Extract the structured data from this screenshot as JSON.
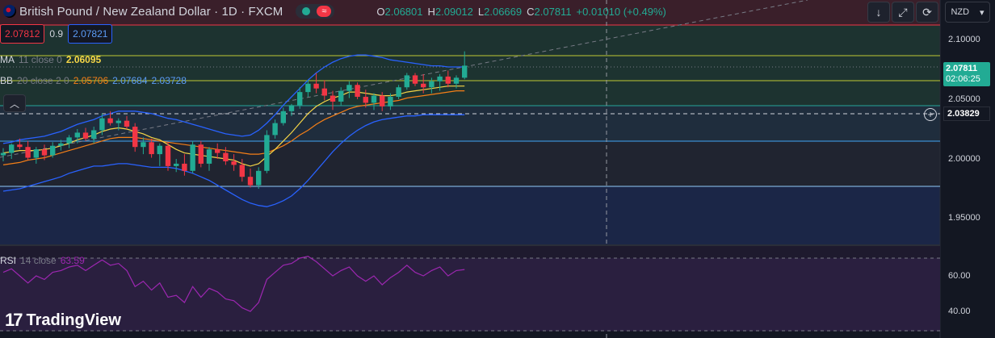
{
  "header": {
    "title": "British Pound / New Zealand Dollar · 1D · FXCM",
    "ohlc": [
      {
        "k": "O",
        "v": "2.06801"
      },
      {
        "k": "H",
        "v": "2.09012"
      },
      {
        "k": "L",
        "v": "2.06669"
      },
      {
        "k": "C",
        "v": "2.07811"
      }
    ],
    "change": "+0.01010 (+0.49%)",
    "currency": "NZD",
    "wave_glyph": "≈"
  },
  "quote": {
    "sell": "2.07812",
    "spread": "0.9",
    "buy": "2.07821"
  },
  "indicators": {
    "ma": {
      "name": "MA",
      "params": "11 close 0",
      "value": "2.06095"
    },
    "bb": {
      "name": "BB",
      "params": "20 close 2 0",
      "basis": "2.05706",
      "upper": "2.07684",
      "lower": "2.03728"
    },
    "rsi": {
      "name": "RSI",
      "params": "14 close",
      "value": "63.59"
    }
  },
  "axis": {
    "price_ticks": [
      "2.10000",
      "2.05000",
      "2.00000",
      "1.95000"
    ],
    "rsi_ticks": [
      "60.00",
      "40.00"
    ]
  },
  "last_price": {
    "price": "2.07811",
    "countdown": "02:06:25"
  },
  "crosshair_price": "2.03829",
  "branding": "TradingView",
  "colors": {
    "up": "#22ab94",
    "down": "#f23645",
    "ma": "#f5d547",
    "bb_basis": "#f57f17",
    "bb_band": "#2962ff",
    "rsi": "#9c27b0"
  },
  "chart_data": {
    "type": "candlestick",
    "symbol": "British Pound / New Zealand Dollar",
    "interval": "1D",
    "ylim": [
      1.92,
      2.12
    ],
    "candles": [
      {
        "o": 2.003,
        "h": 2.009,
        "l": 1.998,
        "c": 2.005
      },
      {
        "o": 2.005,
        "h": 2.013,
        "l": 2.0,
        "c": 2.012
      },
      {
        "o": 2.012,
        "h": 2.017,
        "l": 2.008,
        "c": 2.01
      },
      {
        "o": 2.01,
        "h": 2.015,
        "l": 1.999,
        "c": 2.001
      },
      {
        "o": 2.001,
        "h": 2.01,
        "l": 1.996,
        "c": 2.008
      },
      {
        "o": 2.008,
        "h": 2.012,
        "l": 1.999,
        "c": 2.003
      },
      {
        "o": 2.003,
        "h": 2.014,
        "l": 2.001,
        "c": 2.011
      },
      {
        "o": 2.011,
        "h": 2.016,
        "l": 2.007,
        "c": 2.013
      },
      {
        "o": 2.013,
        "h": 2.02,
        "l": 2.009,
        "c": 2.018
      },
      {
        "o": 2.018,
        "h": 2.025,
        "l": 2.013,
        "c": 2.022
      },
      {
        "o": 2.022,
        "h": 2.026,
        "l": 2.015,
        "c": 2.017
      },
      {
        "o": 2.017,
        "h": 2.027,
        "l": 2.013,
        "c": 2.024
      },
      {
        "o": 2.024,
        "h": 2.038,
        "l": 2.02,
        "c": 2.034
      },
      {
        "o": 2.034,
        "h": 2.04,
        "l": 2.028,
        "c": 2.03
      },
      {
        "o": 2.03,
        "h": 2.034,
        "l": 2.024,
        "c": 2.032
      },
      {
        "o": 2.032,
        "h": 2.036,
        "l": 2.025,
        "c": 2.027
      },
      {
        "o": 2.027,
        "h": 2.03,
        "l": 2.006,
        "c": 2.01
      },
      {
        "o": 2.01,
        "h": 2.018,
        "l": 2.004,
        "c": 2.014
      },
      {
        "o": 2.014,
        "h": 2.017,
        "l": 2.001,
        "c": 2.004
      },
      {
        "o": 2.004,
        "h": 2.013,
        "l": 1.994,
        "c": 2.011
      },
      {
        "o": 2.011,
        "h": 2.014,
        "l": 1.99,
        "c": 1.994
      },
      {
        "o": 1.994,
        "h": 2.0,
        "l": 1.989,
        "c": 1.996
      },
      {
        "o": 1.996,
        "h": 2.004,
        "l": 1.986,
        "c": 1.99
      },
      {
        "o": 1.99,
        "h": 2.015,
        "l": 1.988,
        "c": 2.012
      },
      {
        "o": 2.012,
        "h": 2.015,
        "l": 1.993,
        "c": 1.996
      },
      {
        "o": 1.996,
        "h": 2.01,
        "l": 1.99,
        "c": 2.008
      },
      {
        "o": 2.008,
        "h": 2.013,
        "l": 2.0,
        "c": 2.005
      },
      {
        "o": 2.005,
        "h": 2.01,
        "l": 1.995,
        "c": 1.998
      },
      {
        "o": 1.998,
        "h": 2.004,
        "l": 1.99,
        "c": 1.995
      },
      {
        "o": 1.995,
        "h": 2.0,
        "l": 1.981,
        "c": 1.985
      },
      {
        "o": 1.985,
        "h": 1.992,
        "l": 1.976,
        "c": 1.978
      },
      {
        "o": 1.978,
        "h": 1.993,
        "l": 1.975,
        "c": 1.99
      },
      {
        "o": 1.99,
        "h": 2.024,
        "l": 1.988,
        "c": 2.02
      },
      {
        "o": 2.02,
        "h": 2.033,
        "l": 2.017,
        "c": 2.03
      },
      {
        "o": 2.03,
        "h": 2.043,
        "l": 2.028,
        "c": 2.04
      },
      {
        "o": 2.04,
        "h": 2.046,
        "l": 2.036,
        "c": 2.045
      },
      {
        "o": 2.045,
        "h": 2.06,
        "l": 2.042,
        "c": 2.056
      },
      {
        "o": 2.056,
        "h": 2.066,
        "l": 2.052,
        "c": 2.063
      },
      {
        "o": 2.063,
        "h": 2.072,
        "l": 2.055,
        "c": 2.059
      },
      {
        "o": 2.059,
        "h": 2.066,
        "l": 2.049,
        "c": 2.053
      },
      {
        "o": 2.053,
        "h": 2.057,
        "l": 2.041,
        "c": 2.048
      },
      {
        "o": 2.048,
        "h": 2.06,
        "l": 2.045,
        "c": 2.057
      },
      {
        "o": 2.057,
        "h": 2.065,
        "l": 2.051,
        "c": 2.062
      },
      {
        "o": 2.062,
        "h": 2.064,
        "l": 2.05,
        "c": 2.052
      },
      {
        "o": 2.052,
        "h": 2.058,
        "l": 2.043,
        "c": 2.047
      },
      {
        "o": 2.047,
        "h": 2.055,
        "l": 2.041,
        "c": 2.053
      },
      {
        "o": 2.053,
        "h": 2.056,
        "l": 2.04,
        "c": 2.044
      },
      {
        "o": 2.044,
        "h": 2.055,
        "l": 2.041,
        "c": 2.052
      },
      {
        "o": 2.052,
        "h": 2.062,
        "l": 2.05,
        "c": 2.06
      },
      {
        "o": 2.06,
        "h": 2.072,
        "l": 2.058,
        "c": 2.07
      },
      {
        "o": 2.07,
        "h": 2.072,
        "l": 2.061,
        "c": 2.063
      },
      {
        "o": 2.063,
        "h": 2.071,
        "l": 2.055,
        "c": 2.06
      },
      {
        "o": 2.06,
        "h": 2.068,
        "l": 2.055,
        "c": 2.065
      },
      {
        "o": 2.065,
        "h": 2.071,
        "l": 2.057,
        "c": 2.069
      },
      {
        "o": 2.069,
        "h": 2.074,
        "l": 2.06,
        "c": 2.063
      },
      {
        "o": 2.063,
        "h": 2.07,
        "l": 2.059,
        "c": 2.068
      },
      {
        "o": 2.06801,
        "h": 2.09012,
        "l": 2.06669,
        "c": 2.07811
      }
    ],
    "ma": [
      2.005,
      2.006,
      2.007,
      2.007,
      2.007,
      2.008,
      2.009,
      2.011,
      2.013,
      2.016,
      2.018,
      2.02,
      2.023,
      2.025,
      2.026,
      2.025,
      2.023,
      2.021,
      2.018,
      2.016,
      2.012,
      2.008,
      2.005,
      2.004,
      2.003,
      2.002,
      2.001,
      2.0,
      1.999,
      1.996,
      1.994,
      1.996,
      2.002,
      2.008,
      2.015,
      2.022,
      2.03,
      2.038,
      2.044,
      2.048,
      2.051,
      2.053,
      2.056,
      2.056,
      2.055,
      2.054,
      2.053,
      2.053,
      2.054,
      2.056,
      2.057,
      2.058,
      2.059,
      2.06,
      2.061,
      2.061,
      2.061
    ],
    "bb_basis": [
      1.995,
      1.996,
      1.997,
      1.999,
      2.0,
      2.001,
      2.003,
      2.005,
      2.007,
      2.009,
      2.011,
      2.013,
      2.015,
      2.017,
      2.018,
      2.018,
      2.018,
      2.017,
      2.016,
      2.015,
      2.014,
      2.013,
      2.012,
      2.011,
      2.01,
      2.009,
      2.008,
      2.007,
      2.006,
      2.005,
      2.004,
      2.004,
      2.005,
      2.008,
      2.011,
      2.015,
      2.02,
      2.024,
      2.029,
      2.033,
      2.036,
      2.039,
      2.042,
      2.044,
      2.045,
      2.046,
      2.047,
      2.048,
      2.049,
      2.051,
      2.052,
      2.053,
      2.054,
      2.055,
      2.056,
      2.057,
      2.057
    ],
    "bb_upper": [
      2.013,
      2.014,
      2.016,
      2.017,
      2.018,
      2.019,
      2.021,
      2.023,
      2.026,
      2.029,
      2.031,
      2.033,
      2.036,
      2.038,
      2.04,
      2.04,
      2.04,
      2.039,
      2.038,
      2.036,
      2.034,
      2.033,
      2.031,
      2.029,
      2.027,
      2.025,
      2.023,
      2.021,
      2.02,
      2.019,
      2.02,
      2.024,
      2.03,
      2.037,
      2.045,
      2.052,
      2.059,
      2.066,
      2.072,
      2.077,
      2.081,
      2.084,
      2.086,
      2.087,
      2.087,
      2.086,
      2.085,
      2.083,
      2.082,
      2.081,
      2.08,
      2.079,
      2.078,
      2.078,
      2.077,
      2.077,
      2.077
    ],
    "bb_lower": [
      1.973,
      1.974,
      1.975,
      1.977,
      1.979,
      1.981,
      1.983,
      1.985,
      1.988,
      1.99,
      1.992,
      1.994,
      1.994,
      1.995,
      1.996,
      1.996,
      1.995,
      1.994,
      1.993,
      1.993,
      1.993,
      1.992,
      1.99,
      1.988,
      1.985,
      1.982,
      1.978,
      1.974,
      1.97,
      1.966,
      1.963,
      1.961,
      1.96,
      1.962,
      1.965,
      1.969,
      1.975,
      1.982,
      1.99,
      1.998,
      2.006,
      2.013,
      2.019,
      2.024,
      2.028,
      2.031,
      2.033,
      2.034,
      2.035,
      2.036,
      2.036,
      2.037,
      2.037,
      2.037,
      2.037,
      2.037,
      2.037
    ],
    "rsi_ylim": [
      30,
      75
    ],
    "rsi": [
      62,
      64,
      60,
      56,
      60,
      58,
      62,
      63,
      65,
      66,
      63,
      66,
      69,
      66,
      67,
      63,
      54,
      57,
      52,
      56,
      48,
      49,
      45,
      54,
      48,
      53,
      51,
      47,
      46,
      42,
      40,
      45,
      58,
      62,
      66,
      67,
      70,
      71,
      68,
      64,
      60,
      63,
      65,
      60,
      57,
      60,
      55,
      59,
      62,
      66,
      62,
      60,
      63,
      65,
      60,
      63,
      63.59
    ]
  }
}
